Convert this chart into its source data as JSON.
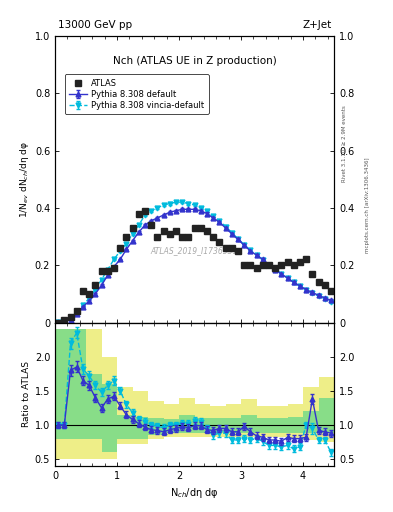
{
  "title_left": "13000 GeV pp",
  "title_right": "Z+Jet",
  "plot_title": "Nch (ATLAS UE in Z production)",
  "ylabel_main": "1/N$_{ev}$ dN$_{ch}$/dη dφ",
  "ylabel_ratio": "Ratio to ATLAS",
  "xlabel": "N$_{ch}$/dη dφ",
  "watermark": "ATLAS_2019_I1736531",
  "rivet_label": "Rivet 3.1.10, ≥ 2.9M events",
  "mcplots_label": "mcplots.cern.ch [arXiv:1306.3436]",
  "atlas_x": [
    0.05,
    0.15,
    0.25,
    0.35,
    0.45,
    0.55,
    0.65,
    0.75,
    0.85,
    0.95,
    1.05,
    1.15,
    1.25,
    1.35,
    1.45,
    1.55,
    1.65,
    1.75,
    1.85,
    1.95,
    2.05,
    2.15,
    2.25,
    2.35,
    2.45,
    2.55,
    2.65,
    2.75,
    2.85,
    2.95,
    3.05,
    3.15,
    3.25,
    3.35,
    3.45,
    3.55,
    3.65,
    3.75,
    3.85,
    3.95,
    4.05,
    4.15,
    4.25,
    4.35,
    4.45
  ],
  "atlas_y": [
    0.0,
    0.01,
    0.02,
    0.04,
    0.11,
    0.1,
    0.13,
    0.18,
    0.18,
    0.19,
    0.26,
    0.3,
    0.33,
    0.38,
    0.39,
    0.34,
    0.3,
    0.32,
    0.31,
    0.32,
    0.3,
    0.3,
    0.33,
    0.33,
    0.32,
    0.3,
    0.28,
    0.26,
    0.26,
    0.25,
    0.2,
    0.2,
    0.19,
    0.2,
    0.2,
    0.19,
    0.2,
    0.21,
    0.2,
    0.21,
    0.22,
    0.17,
    0.14,
    0.13,
    0.11
  ],
  "py_def_x": [
    0.05,
    0.15,
    0.25,
    0.35,
    0.45,
    0.55,
    0.65,
    0.75,
    0.85,
    0.95,
    1.05,
    1.15,
    1.25,
    1.35,
    1.45,
    1.55,
    1.65,
    1.75,
    1.85,
    1.95,
    2.05,
    2.15,
    2.25,
    2.35,
    2.45,
    2.55,
    2.65,
    2.75,
    2.85,
    2.95,
    3.05,
    3.15,
    3.25,
    3.35,
    3.45,
    3.55,
    3.65,
    3.75,
    3.85,
    3.95,
    4.05,
    4.15,
    4.25,
    4.35,
    4.45
  ],
  "py_def_y": [
    0.001,
    0.003,
    0.01,
    0.03,
    0.055,
    0.075,
    0.1,
    0.13,
    0.165,
    0.195,
    0.22,
    0.255,
    0.285,
    0.315,
    0.34,
    0.355,
    0.365,
    0.375,
    0.385,
    0.39,
    0.395,
    0.395,
    0.395,
    0.39,
    0.38,
    0.365,
    0.35,
    0.33,
    0.31,
    0.29,
    0.27,
    0.25,
    0.235,
    0.22,
    0.2,
    0.185,
    0.17,
    0.155,
    0.14,
    0.128,
    0.115,
    0.105,
    0.095,
    0.086,
    0.078
  ],
  "py_def_yerr": [
    0.001,
    0.001,
    0.001,
    0.002,
    0.002,
    0.002,
    0.003,
    0.003,
    0.003,
    0.003,
    0.003,
    0.003,
    0.003,
    0.003,
    0.004,
    0.004,
    0.004,
    0.004,
    0.004,
    0.004,
    0.004,
    0.004,
    0.004,
    0.004,
    0.004,
    0.004,
    0.004,
    0.004,
    0.004,
    0.004,
    0.004,
    0.004,
    0.004,
    0.004,
    0.004,
    0.004,
    0.004,
    0.004,
    0.004,
    0.004,
    0.004,
    0.004,
    0.004,
    0.004,
    0.004
  ],
  "py_vin_x": [
    0.05,
    0.15,
    0.25,
    0.35,
    0.45,
    0.55,
    0.65,
    0.75,
    0.85,
    0.95,
    1.05,
    1.15,
    1.25,
    1.35,
    1.45,
    1.55,
    1.65,
    1.75,
    1.85,
    1.95,
    2.05,
    2.15,
    2.25,
    2.35,
    2.45,
    2.55,
    2.65,
    2.75,
    2.85,
    2.95,
    3.05,
    3.15,
    3.25,
    3.35,
    3.45,
    3.55,
    3.65,
    3.75,
    3.85,
    3.95,
    4.05,
    4.15,
    4.25,
    4.35,
    4.45
  ],
  "py_vin_y": [
    0.001,
    0.004,
    0.012,
    0.035,
    0.06,
    0.085,
    0.115,
    0.15,
    0.185,
    0.22,
    0.25,
    0.275,
    0.31,
    0.34,
    0.375,
    0.39,
    0.4,
    0.41,
    0.415,
    0.42,
    0.42,
    0.415,
    0.41,
    0.4,
    0.388,
    0.372,
    0.355,
    0.335,
    0.314,
    0.292,
    0.272,
    0.252,
    0.235,
    0.218,
    0.2,
    0.184,
    0.17,
    0.155,
    0.14,
    0.126,
    0.113,
    0.102,
    0.092,
    0.082,
    0.073
  ],
  "py_vin_yerr": [
    0.001,
    0.001,
    0.001,
    0.002,
    0.002,
    0.002,
    0.003,
    0.003,
    0.003,
    0.003,
    0.003,
    0.003,
    0.003,
    0.003,
    0.004,
    0.004,
    0.004,
    0.004,
    0.004,
    0.004,
    0.004,
    0.004,
    0.004,
    0.004,
    0.004,
    0.004,
    0.004,
    0.004,
    0.004,
    0.004,
    0.004,
    0.004,
    0.004,
    0.004,
    0.004,
    0.004,
    0.004,
    0.004,
    0.004,
    0.004,
    0.004,
    0.004,
    0.004,
    0.004,
    0.004
  ],
  "band_x_edges": [
    0.0,
    0.25,
    0.5,
    0.75,
    1.0,
    1.25,
    1.5,
    1.75,
    2.0,
    2.25,
    2.5,
    2.75,
    3.0,
    3.25,
    3.5,
    3.75,
    4.0,
    4.25,
    4.5
  ],
  "green_lo": [
    0.8,
    0.8,
    0.8,
    0.6,
    0.8,
    0.8,
    0.85,
    0.88,
    0.88,
    0.88,
    0.88,
    0.88,
    0.88,
    0.88,
    0.88,
    0.88,
    0.88,
    0.88,
    0.88
  ],
  "green_hi": [
    2.4,
    2.4,
    1.75,
    1.6,
    1.15,
    1.12,
    1.1,
    1.08,
    1.15,
    1.1,
    1.1,
    1.1,
    1.15,
    1.1,
    1.1,
    1.12,
    1.2,
    1.4,
    1.4
  ],
  "yellow_lo": [
    0.5,
    0.5,
    0.5,
    0.5,
    0.72,
    0.72,
    0.8,
    0.82,
    0.82,
    0.82,
    0.82,
    0.82,
    0.82,
    0.82,
    0.82,
    0.8,
    0.78,
    0.75,
    0.5
  ],
  "yellow_hi": [
    2.4,
    2.4,
    2.4,
    2.0,
    1.55,
    1.5,
    1.35,
    1.3,
    1.4,
    1.3,
    1.28,
    1.3,
    1.38,
    1.28,
    1.28,
    1.3,
    1.55,
    1.7,
    2.0
  ],
  "ratio_py_def_x": [
    0.05,
    0.15,
    0.25,
    0.35,
    0.45,
    0.55,
    0.65,
    0.75,
    0.85,
    0.95,
    1.05,
    1.15,
    1.25,
    1.35,
    1.45,
    1.55,
    1.65,
    1.75,
    1.85,
    1.95,
    2.05,
    2.15,
    2.25,
    2.35,
    2.45,
    2.55,
    2.65,
    2.75,
    2.85,
    2.95,
    3.05,
    3.15,
    3.25,
    3.35,
    3.45,
    3.55,
    3.65,
    3.75,
    3.85,
    3.95,
    4.05,
    4.15,
    4.25,
    4.35,
    4.45
  ],
  "ratio_py_def_y": [
    1.0,
    1.0,
    1.8,
    1.85,
    1.65,
    1.58,
    1.4,
    1.25,
    1.38,
    1.42,
    1.28,
    1.15,
    1.08,
    1.02,
    0.97,
    0.93,
    0.92,
    0.9,
    0.93,
    0.95,
    0.98,
    0.96,
    0.99,
    0.99,
    0.93,
    0.92,
    0.95,
    0.95,
    0.9,
    0.9,
    0.98,
    0.9,
    0.84,
    0.82,
    0.78,
    0.78,
    0.76,
    0.82,
    0.8,
    0.8,
    0.82,
    1.38,
    0.92,
    0.9,
    0.88
  ],
  "ratio_py_def_yerr": [
    0.05,
    0.05,
    0.08,
    0.08,
    0.07,
    0.07,
    0.06,
    0.06,
    0.06,
    0.06,
    0.05,
    0.05,
    0.05,
    0.05,
    0.05,
    0.05,
    0.05,
    0.05,
    0.05,
    0.05,
    0.05,
    0.05,
    0.05,
    0.05,
    0.05,
    0.05,
    0.05,
    0.05,
    0.05,
    0.05,
    0.05,
    0.05,
    0.05,
    0.05,
    0.05,
    0.05,
    0.05,
    0.05,
    0.05,
    0.05,
    0.05,
    0.08,
    0.05,
    0.05,
    0.05
  ],
  "ratio_py_vin_x": [
    0.05,
    0.15,
    0.25,
    0.35,
    0.45,
    0.55,
    0.65,
    0.75,
    0.85,
    0.95,
    1.05,
    1.15,
    1.25,
    1.35,
    1.45,
    1.55,
    1.65,
    1.75,
    1.85,
    1.95,
    2.05,
    2.15,
    2.25,
    2.35,
    2.45,
    2.55,
    2.65,
    2.75,
    2.85,
    2.95,
    3.05,
    3.15,
    3.25,
    3.35,
    3.45,
    3.55,
    3.65,
    3.75,
    3.85,
    3.95,
    4.05,
    4.15,
    4.25,
    4.35,
    4.45
  ],
  "ratio_py_vin_y": [
    1.0,
    1.0,
    2.2,
    2.35,
    1.82,
    1.72,
    1.58,
    1.48,
    1.58,
    1.65,
    1.5,
    1.3,
    1.18,
    1.08,
    1.05,
    1.0,
    0.98,
    0.96,
    1.0,
    1.0,
    1.02,
    1.02,
    1.06,
    1.05,
    0.95,
    0.85,
    0.88,
    0.88,
    0.78,
    0.78,
    0.8,
    0.78,
    0.8,
    0.76,
    0.7,
    0.7,
    0.68,
    0.7,
    0.65,
    0.68,
    1.0,
    0.95,
    0.78,
    0.78,
    0.6
  ],
  "ratio_py_vin_yerr": [
    0.05,
    0.05,
    0.08,
    0.08,
    0.07,
    0.07,
    0.06,
    0.06,
    0.06,
    0.06,
    0.05,
    0.05,
    0.05,
    0.05,
    0.05,
    0.05,
    0.05,
    0.05,
    0.05,
    0.05,
    0.05,
    0.05,
    0.05,
    0.05,
    0.05,
    0.05,
    0.05,
    0.05,
    0.05,
    0.05,
    0.05,
    0.05,
    0.05,
    0.05,
    0.05,
    0.05,
    0.05,
    0.05,
    0.05,
    0.05,
    0.05,
    0.08,
    0.05,
    0.05,
    0.05
  ],
  "color_atlas": "#222222",
  "color_py_def": "#3333cc",
  "color_py_vin": "#00bbdd",
  "color_green": "#88dd88",
  "color_yellow": "#eeee88",
  "xlim": [
    0,
    4.5
  ],
  "ylim_main": [
    0,
    1.0
  ],
  "ylim_ratio": [
    0.4,
    2.5
  ],
  "yticks_main": [
    0,
    0.2,
    0.4,
    0.6,
    0.8,
    1.0
  ],
  "yticks_ratio": [
    0.5,
    1.0,
    1.5,
    2.0
  ],
  "xticks": [
    0,
    1,
    2,
    3,
    4
  ]
}
